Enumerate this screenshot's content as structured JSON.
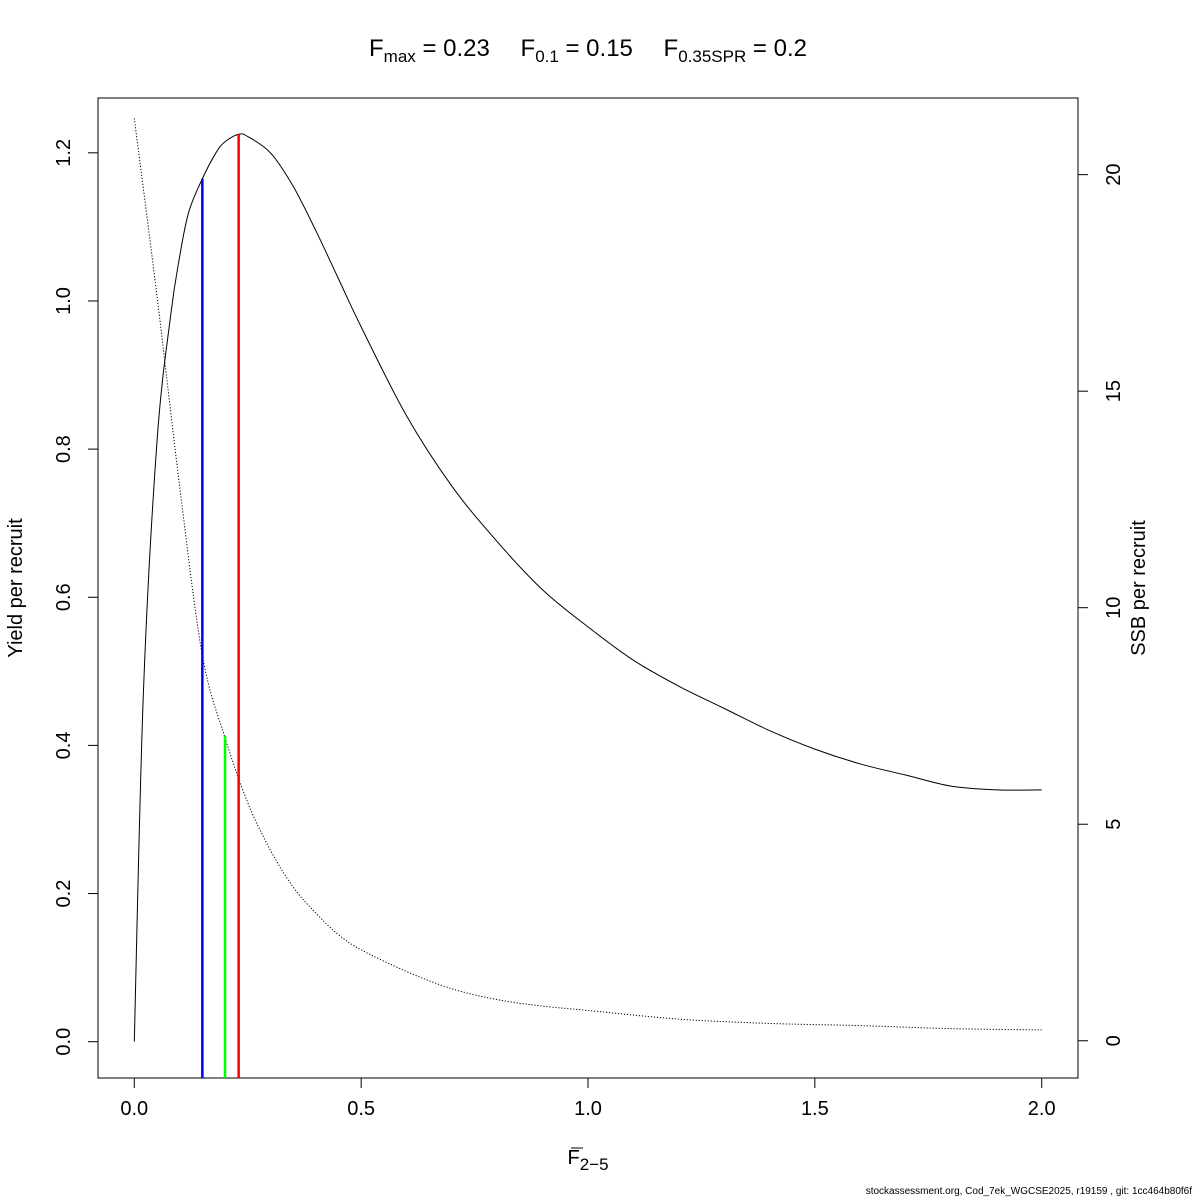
{
  "chart_data": {
    "type": "line",
    "title": {
      "parts": [
        {
          "main": "F",
          "sub": "max",
          "rest": " = 0.23"
        },
        {
          "main": "F",
          "sub": "0.1",
          "rest": " = 0.15"
        },
        {
          "main": "F",
          "sub": "0.35SPR",
          "rest": " = 0.2"
        }
      ]
    },
    "xlabel": {
      "main": "F",
      "sub": "2−5",
      "overline": true
    },
    "ylabel_left": "Yield per recruit",
    "ylabel_right": "SSB per recruit",
    "xlim": [
      -0.08,
      2.08
    ],
    "ylim_left": [
      -0.049,
      1.274
    ],
    "ylim_right": [
      -0.86,
      21.77
    ],
    "x_ticks": [
      0,
      0.5,
      1,
      1.5,
      2
    ],
    "x_tick_labels": [
      "0.0",
      "0.5",
      "1.0",
      "1.5",
      "2.0"
    ],
    "y_left_ticks": [
      0,
      0.2,
      0.4,
      0.6,
      0.8,
      1.0,
      1.2
    ],
    "y_left_tick_labels": [
      "0.0",
      "0.2",
      "0.4",
      "0.6",
      "0.8",
      "1.0",
      "1.2"
    ],
    "y_right_ticks": [
      0,
      5,
      10,
      15,
      20
    ],
    "y_right_tick_labels": [
      "0",
      "5",
      "10",
      "15",
      "20"
    ],
    "series": [
      {
        "axis": "left",
        "color": "#000000",
        "style": "solid",
        "x": [
          0,
          0.02,
          0.05,
          0.08,
          0.1,
          0.12,
          0.15,
          0.18,
          0.2,
          0.23,
          0.25,
          0.3,
          0.35,
          0.4,
          0.45,
          0.5,
          0.6,
          0.7,
          0.8,
          0.9,
          1.0,
          1.1,
          1.2,
          1.3,
          1.4,
          1.5,
          1.6,
          1.7,
          1.8,
          1.9,
          2.0
        ],
        "y": [
          0.0,
          0.47,
          0.81,
          0.98,
          1.06,
          1.12,
          1.165,
          1.2,
          1.215,
          1.225,
          1.222,
          1.2,
          1.155,
          1.095,
          1.03,
          0.965,
          0.845,
          0.75,
          0.675,
          0.61,
          0.56,
          0.515,
          0.48,
          0.45,
          0.42,
          0.395,
          0.375,
          0.36,
          0.345,
          0.34,
          0.34
        ]
      },
      {
        "axis": "right",
        "color": "#000000",
        "style": "dotted",
        "x": [
          0,
          0.05,
          0.1,
          0.15,
          0.2,
          0.25,
          0.3,
          0.35,
          0.4,
          0.45,
          0.5,
          0.6,
          0.7,
          0.8,
          0.9,
          1.0,
          1.2,
          1.4,
          1.6,
          1.8,
          2.0
        ],
        "y": [
          21.3,
          17.2,
          12.8,
          8.9,
          7.0,
          5.5,
          4.4,
          3.55,
          2.95,
          2.45,
          2.1,
          1.6,
          1.2,
          0.95,
          0.8,
          0.7,
          0.5,
          0.4,
          0.35,
          0.28,
          0.25
        ]
      }
    ],
    "reference_lines": [
      {
        "x": 0.15,
        "y_top": 1.165,
        "color": "#0000ff"
      },
      {
        "x": 0.2,
        "y_top": 0.413,
        "color": "#00ff00"
      },
      {
        "x": 0.23,
        "y_top": 1.225,
        "color": "#ff0000"
      }
    ]
  },
  "footer": "stockassessment.org, Cod_7ek_WGCSE2025, r19159 , git: 1cc464b80f6f"
}
